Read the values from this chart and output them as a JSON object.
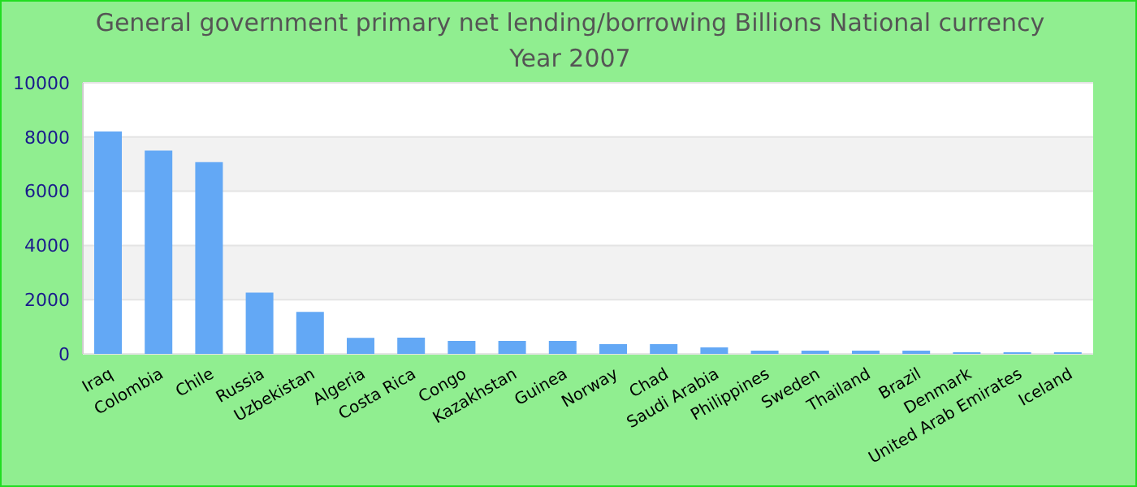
{
  "chart_data": {
    "type": "bar",
    "title": "General government primary net lending/borrowing Billions National currency",
    "subtitle": "Year 2007",
    "categories": [
      "Iraq",
      "Colombia",
      "Chile",
      "Russia",
      "Uzbekistan",
      "Algeria",
      "Costa Rica",
      "Congo",
      "Kazakhstan",
      "Guinea",
      "Norway",
      "Chad",
      "Saudi Arabia",
      "Philippines",
      "Sweden",
      "Thailand",
      "Brazil",
      "Denmark",
      "United Arab Emirates",
      "Iceland"
    ],
    "values": [
      8200,
      7500,
      7070,
      2260,
      1550,
      590,
      600,
      480,
      480,
      480,
      360,
      360,
      240,
      120,
      120,
      120,
      120,
      60,
      60,
      60
    ],
    "color": "#63a8f5",
    "ylim": [
      0,
      10000
    ],
    "yticks": [
      0,
      2000,
      4000,
      6000,
      8000,
      10000
    ],
    "grid": "y"
  }
}
